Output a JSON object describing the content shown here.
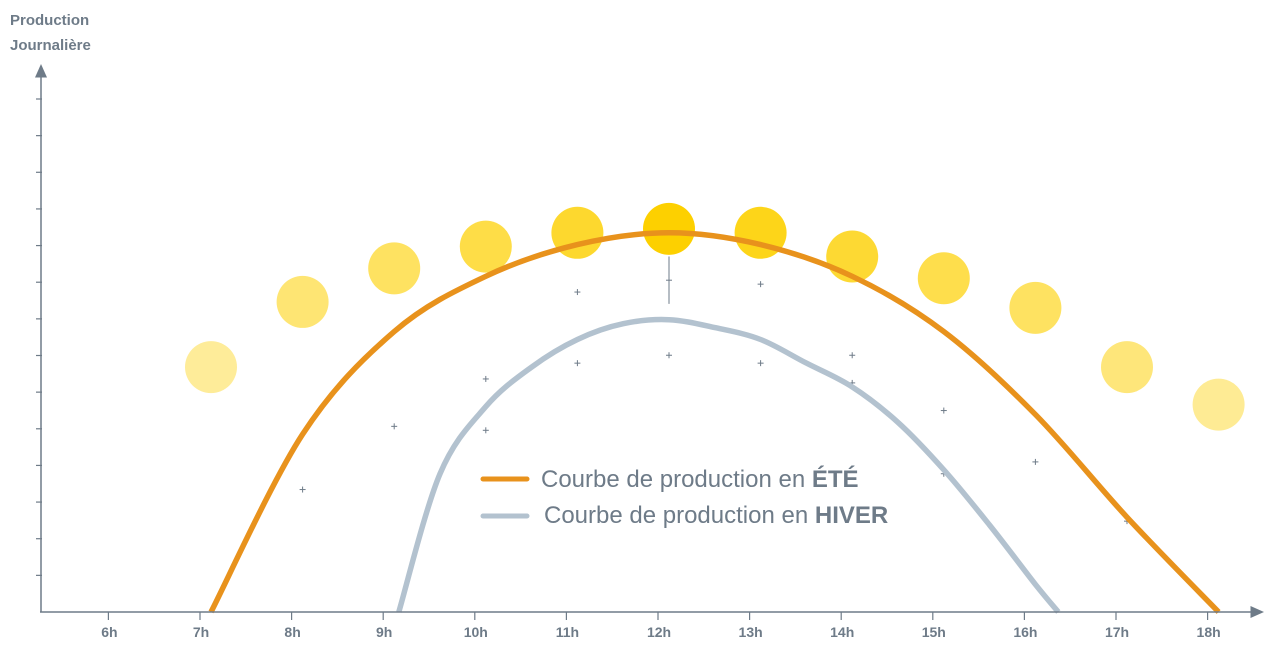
{
  "chart_data": {
    "type": "line",
    "ylabel": [
      "Production",
      "Journalière"
    ],
    "xlabel": "",
    "x_ticks": [
      "6h",
      "7h",
      "8h",
      "9h",
      "10h",
      "11h",
      "12h",
      "13h",
      "14h",
      "15h",
      "16h",
      "17h",
      "18h"
    ],
    "xlim": [
      5.3,
      18.4
    ],
    "ylim": [
      0,
      1
    ],
    "y_minor_ticks": 14,
    "grid": false,
    "legend_position": "center",
    "series": [
      {
        "name_prefix": "Courbe de production en ",
        "name_emph": "ÉTÉ",
        "color": "#e8921c",
        "x": [
          7.0,
          8.0,
          9.0,
          10.0,
          11.0,
          12.0,
          13.0,
          14.0,
          15.0,
          16.0,
          17.0,
          18.0
        ],
        "values": [
          0.0,
          0.45,
          0.71,
          0.85,
          0.93,
          0.96,
          0.93,
          0.85,
          0.71,
          0.5,
          0.24,
          0.0
        ]
      },
      {
        "name_prefix": "Courbe de production en ",
        "name_emph": "HIVER",
        "color": "#b3c2cf",
        "x": [
          9.05,
          9.5,
          10.0,
          10.5,
          11.0,
          11.5,
          12.0,
          12.5,
          13.0,
          13.5,
          14.0,
          14.5,
          15.0,
          15.5,
          16.0,
          16.25
        ],
        "values": [
          0.0,
          0.35,
          0.52,
          0.62,
          0.69,
          0.73,
          0.74,
          0.72,
          0.69,
          0.63,
          0.57,
          0.48,
          0.36,
          0.22,
          0.07,
          0.0
        ]
      }
    ],
    "sun_markers": {
      "x": [
        7.0,
        8.0,
        9.0,
        10.0,
        11.0,
        12.0,
        13.0,
        14.0,
        15.0,
        16.0,
        17.0,
        18.0
      ],
      "values": [
        1.24,
        1.57,
        1.74,
        1.85,
        1.92,
        1.94,
        1.92,
        1.8,
        1.69,
        1.54,
        1.24,
        1.05
      ],
      "intensity": [
        0.4,
        0.55,
        0.62,
        0.72,
        0.82,
        1.0,
        0.9,
        0.8,
        0.7,
        0.62,
        0.52,
        0.42
      ],
      "color": "#fdd000"
    },
    "cross_markers": {
      "x": [
        8.0,
        9.0,
        10.0,
        10.0,
        11.0,
        11.0,
        12.0,
        12.0,
        13.0,
        13.0,
        14.0,
        14.0,
        15.0,
        15.0,
        16.0,
        17.0
      ],
      "values": [
        0.31,
        0.47,
        0.59,
        0.46,
        0.81,
        0.63,
        0.84,
        0.65,
        0.83,
        0.63,
        0.65,
        0.58,
        0.51,
        0.35,
        0.38,
        0.23
      ]
    }
  }
}
